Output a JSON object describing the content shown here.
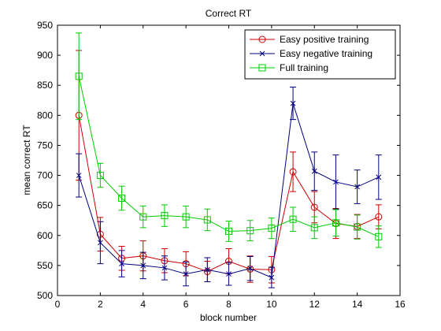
{
  "chart_data": {
    "type": "line",
    "title": "Correct RT",
    "xlabel": "block number",
    "ylabel": "mean correct RT",
    "xlim": [
      0,
      16
    ],
    "ylim": [
      500,
      950
    ],
    "xticks": [
      0,
      2,
      4,
      6,
      8,
      10,
      12,
      14,
      16
    ],
    "yticks": [
      500,
      550,
      600,
      650,
      700,
      750,
      800,
      850,
      900,
      950
    ],
    "grid": false,
    "legend_position": "top-right",
    "series": [
      {
        "name": "Easy positive training",
        "color": "#cc0000",
        "marker": "circle",
        "x": [
          1,
          2,
          3,
          4,
          5,
          6,
          7,
          8,
          9,
          10,
          11,
          12,
          13,
          14,
          15
        ],
        "y": [
          800,
          602,
          562,
          566,
          558,
          553,
          540,
          557,
          544,
          543,
          706,
          647,
          620,
          615,
          631
        ],
        "err": [
          108,
          28,
          20,
          25,
          20,
          20,
          17,
          21,
          22,
          22,
          33,
          26,
          25,
          20,
          20
        ]
      },
      {
        "name": "Easy negative training",
        "color": "#000080",
        "marker": "x",
        "x": [
          1,
          2,
          3,
          4,
          5,
          6,
          7,
          8,
          9,
          10,
          11,
          12,
          13,
          14,
          15
        ],
        "y": [
          700,
          588,
          553,
          550,
          546,
          536,
          543,
          536,
          545,
          530,
          820,
          707,
          689,
          681,
          697
        ],
        "err": [
          36,
          35,
          22,
          22,
          20,
          20,
          20,
          19,
          20,
          17,
          27,
          32,
          45,
          28,
          37
        ]
      },
      {
        "name": "Full training",
        "color": "#00cc00",
        "marker": "square",
        "x": [
          1,
          2,
          3,
          4,
          5,
          6,
          7,
          8,
          9,
          10,
          11,
          12,
          13,
          14,
          15
        ],
        "y": [
          865,
          700,
          662,
          631,
          633,
          631,
          626,
          607,
          608,
          612,
          627,
          613,
          621,
          614,
          598
        ],
        "err": [
          72,
          20,
          20,
          18,
          18,
          18,
          18,
          17,
          17,
          17,
          20,
          18,
          22,
          20,
          18
        ]
      }
    ]
  }
}
